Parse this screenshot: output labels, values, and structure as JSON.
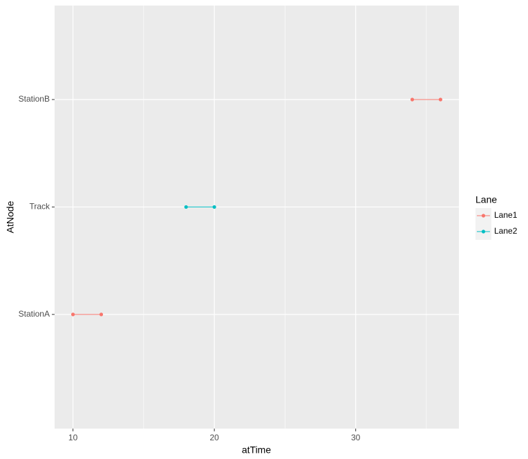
{
  "chart_data": {
    "type": "line",
    "x_label": "atTime",
    "y_label": "AtNode",
    "categories": [
      "StationA",
      "Track",
      "StationB"
    ],
    "series": [
      {
        "name": "Lane1",
        "color": "#F8766D",
        "x": [
          10,
          12,
          null,
          34,
          36
        ],
        "values": [
          "StationA",
          "StationA",
          null,
          "StationB",
          "StationB"
        ]
      },
      {
        "name": "Lane2",
        "color": "#00BFC4",
        "x": [
          18,
          20
        ],
        "values": [
          "Track",
          "Track"
        ]
      }
    ],
    "xlim": [
      8.7,
      37.3
    ],
    "xticks": [
      10,
      20,
      30
    ],
    "grid": true,
    "legend_title": "Lane",
    "legend_position": "right"
  }
}
